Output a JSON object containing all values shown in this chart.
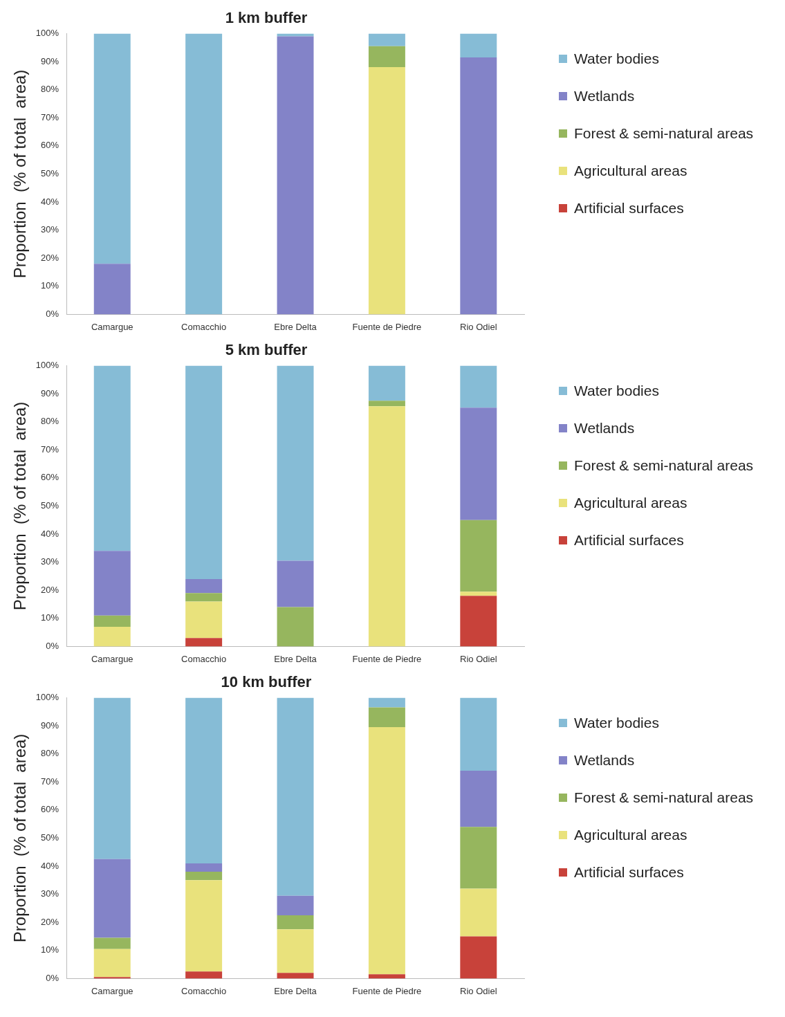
{
  "chart_data": [
    {
      "type": "bar",
      "title": "1 km buffer",
      "ylabel": "Proportion  (% of total  area)",
      "categories": [
        "Camargue",
        "Comacchio",
        "Ebre Delta",
        "Fuente de Piedre",
        "Rio Odiel"
      ],
      "stacked": true,
      "ylim": [
        0,
        100
      ],
      "yticks": [
        {
          "value": 0,
          "label": "0%"
        },
        {
          "value": 10,
          "label": "10%"
        },
        {
          "value": 20,
          "label": "20%"
        },
        {
          "value": 30,
          "label": "30%"
        },
        {
          "value": 40,
          "label": "40%"
        },
        {
          "value": 50,
          "label": "50%"
        },
        {
          "value": 60,
          "label": "60%"
        },
        {
          "value": 70,
          "label": "70%"
        },
        {
          "value": 80,
          "label": "80%"
        },
        {
          "value": 90,
          "label": "90%"
        },
        {
          "value": 100,
          "label": "100%"
        }
      ],
      "grid": false,
      "legend": "right",
      "series": [
        {
          "name": "Artificial surfaces",
          "color": "#c8423a",
          "values": [
            0,
            0,
            0,
            0,
            0
          ]
        },
        {
          "name": "Agricultural areas",
          "color": "#e9e27c",
          "values": [
            0,
            0,
            0,
            88,
            0
          ]
        },
        {
          "name": "Forest & semi-natural areas",
          "color": "#96b65e",
          "values": [
            0,
            0,
            0,
            7.5,
            0
          ]
        },
        {
          "name": "Wetlands",
          "color": "#8383c8",
          "values": [
            18,
            0,
            99,
            0,
            91.5
          ]
        },
        {
          "name": "Water bodies",
          "color": "#86bcd6",
          "values": [
            82,
            100,
            1,
            4.5,
            8.5
          ]
        }
      ]
    },
    {
      "type": "bar",
      "title": "5 km buffer",
      "ylabel": "Proportion  (% of total  area)",
      "categories": [
        "Camargue",
        "Comacchio",
        "Ebre Delta",
        "Fuente de Piedre",
        "Rio Odiel"
      ],
      "stacked": true,
      "ylim": [
        0,
        100
      ],
      "yticks": [
        {
          "value": 0,
          "label": "0%"
        },
        {
          "value": 10,
          "label": "10%"
        },
        {
          "value": 20,
          "label": "20%"
        },
        {
          "value": 30,
          "label": "30%"
        },
        {
          "value": 40,
          "label": "40%"
        },
        {
          "value": 50,
          "label": "50%"
        },
        {
          "value": 60,
          "label": "60%"
        },
        {
          "value": 70,
          "label": "70%"
        },
        {
          "value": 80,
          "label": "80%"
        },
        {
          "value": 90,
          "label": "90%"
        },
        {
          "value": 100,
          "label": "100%"
        }
      ],
      "grid": false,
      "legend": "right",
      "series": [
        {
          "name": "Artificial surfaces",
          "color": "#c8423a",
          "values": [
            0,
            3,
            0,
            0,
            18
          ]
        },
        {
          "name": "Agricultural areas",
          "color": "#e9e27c",
          "values": [
            7,
            13,
            0,
            85.5,
            1.5
          ]
        },
        {
          "name": "Forest & semi-natural areas",
          "color": "#96b65e",
          "values": [
            4,
            3,
            14,
            2,
            25.5
          ]
        },
        {
          "name": "Wetlands",
          "color": "#8383c8",
          "values": [
            23,
            5,
            16.5,
            0,
            40
          ]
        },
        {
          "name": "Water bodies",
          "color": "#86bcd6",
          "values": [
            66,
            76,
            69.5,
            12.5,
            15
          ]
        }
      ]
    },
    {
      "type": "bar",
      "title": "10 km buffer",
      "ylabel": "Proportion  (% of total  area)",
      "categories": [
        "Camargue",
        "Comacchio",
        "Ebre Delta",
        "Fuente de Piedre",
        "Rio Odiel"
      ],
      "stacked": true,
      "ylim": [
        0,
        100
      ],
      "yticks": [
        {
          "value": 0,
          "label": "0%"
        },
        {
          "value": 10,
          "label": "10%"
        },
        {
          "value": 20,
          "label": "20%"
        },
        {
          "value": 30,
          "label": "30%"
        },
        {
          "value": 40,
          "label": "40%"
        },
        {
          "value": 50,
          "label": "50%"
        },
        {
          "value": 60,
          "label": "60%"
        },
        {
          "value": 70,
          "label": "70%"
        },
        {
          "value": 80,
          "label": "80%"
        },
        {
          "value": 90,
          "label": "90%"
        },
        {
          "value": 100,
          "label": "100%"
        }
      ],
      "grid": false,
      "legend": "right",
      "series": [
        {
          "name": "Artificial surfaces",
          "color": "#c8423a",
          "values": [
            0.5,
            2.5,
            2,
            1.5,
            15
          ]
        },
        {
          "name": "Agricultural areas",
          "color": "#e9e27c",
          "values": [
            10,
            32.5,
            15.5,
            88,
            17
          ]
        },
        {
          "name": "Forest & semi-natural areas",
          "color": "#96b65e",
          "values": [
            4,
            3,
            5,
            7,
            22
          ]
        },
        {
          "name": "Wetlands",
          "color": "#8383c8",
          "values": [
            28,
            3,
            7,
            0,
            20
          ]
        },
        {
          "name": "Water bodies",
          "color": "#86bcd6",
          "values": [
            57.5,
            59,
            70.5,
            3.5,
            26
          ]
        }
      ]
    }
  ]
}
